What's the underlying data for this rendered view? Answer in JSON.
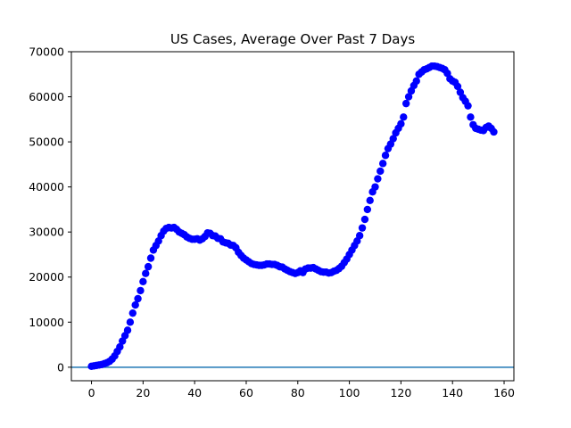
{
  "chart_data": {
    "type": "scatter",
    "title": "US Cases, Average Over Past 7 Days",
    "xlabel": "",
    "ylabel": "",
    "xlim": [
      -7.8,
      163.8
    ],
    "ylim": [
      -3000,
      70000
    ],
    "x_ticks": [
      0,
      20,
      40,
      60,
      80,
      100,
      120,
      140,
      160
    ],
    "y_ticks": [
      0,
      10000,
      20000,
      30000,
      40000,
      50000,
      60000,
      70000
    ],
    "grid": false,
    "legend": "none",
    "marker_color": "#0000ff",
    "hline": {
      "y": 0,
      "color": "#1f77b4"
    },
    "x": [
      0,
      1,
      2,
      3,
      4,
      5,
      6,
      7,
      8,
      9,
      10,
      11,
      12,
      13,
      14,
      15,
      16,
      17,
      18,
      19,
      20,
      21,
      22,
      23,
      24,
      25,
      26,
      27,
      28,
      29,
      30,
      31,
      32,
      33,
      34,
      35,
      36,
      37,
      38,
      39,
      40,
      41,
      42,
      43,
      44,
      45,
      46,
      47,
      48,
      49,
      50,
      51,
      52,
      53,
      54,
      55,
      56,
      57,
      58,
      59,
      60,
      61,
      62,
      63,
      64,
      65,
      66,
      67,
      68,
      69,
      70,
      71,
      72,
      73,
      74,
      75,
      76,
      77,
      78,
      79,
      80,
      81,
      82,
      83,
      84,
      85,
      86,
      87,
      88,
      89,
      90,
      91,
      92,
      93,
      94,
      95,
      96,
      97,
      98,
      99,
      100,
      101,
      102,
      103,
      104,
      105,
      106,
      107,
      108,
      109,
      110,
      111,
      112,
      113,
      114,
      115,
      116,
      117,
      118,
      119,
      120,
      121,
      122,
      123,
      124,
      125,
      126,
      127,
      128,
      129,
      130,
      131,
      132,
      133,
      134,
      135,
      136,
      137,
      138,
      139,
      140,
      141,
      142,
      143,
      144,
      145,
      146,
      147,
      148,
      149,
      150,
      151,
      152,
      153,
      154,
      155,
      156
    ],
    "y": [
      200,
      300,
      400,
      500,
      600,
      800,
      1000,
      1300,
      1800,
      2500,
      3500,
      4500,
      5800,
      7000,
      8200,
      10000,
      12000,
      13800,
      15200,
      17000,
      19000,
      20800,
      22300,
      24200,
      26000,
      27000,
      28000,
      29200,
      30200,
      30800,
      31000,
      30900,
      31000,
      30600,
      30000,
      29700,
      29400,
      28900,
      28600,
      28400,
      28400,
      28500,
      28200,
      28500,
      29000,
      29800,
      29700,
      29200,
      29100,
      28600,
      28500,
      27800,
      27600,
      27500,
      27100,
      27000,
      26500,
      25500,
      24800,
      24200,
      23800,
      23400,
      23000,
      22800,
      22700,
      22600,
      22600,
      22700,
      22900,
      22900,
      22800,
      22800,
      22600,
      22300,
      22200,
      21800,
      21500,
      21200,
      21000,
      20800,
      21000,
      21400,
      21000,
      21800,
      22000,
      22000,
      22100,
      21800,
      21500,
      21200,
      21100,
      21100,
      20900,
      21000,
      21300,
      21500,
      21900,
      22400,
      23200,
      24000,
      25000,
      26000,
      27000,
      28000,
      29200,
      30900,
      32800,
      35000,
      37000,
      38900,
      40000,
      41800,
      43500,
      45200,
      47000,
      48500,
      49500,
      50700,
      52000,
      53000,
      54000,
      55500,
      58500,
      60000,
      61300,
      62500,
      63500,
      65000,
      65500,
      66000,
      66200,
      66500,
      66800,
      66800,
      66700,
      66500,
      66300,
      66000,
      65200,
      64000,
      63500,
      63200,
      62300,
      61000,
      59800,
      59000,
      58000,
      55500,
      53800,
      53000,
      52800,
      52600,
      52500,
      53200,
      53500,
      53000,
      52200
    ]
  }
}
